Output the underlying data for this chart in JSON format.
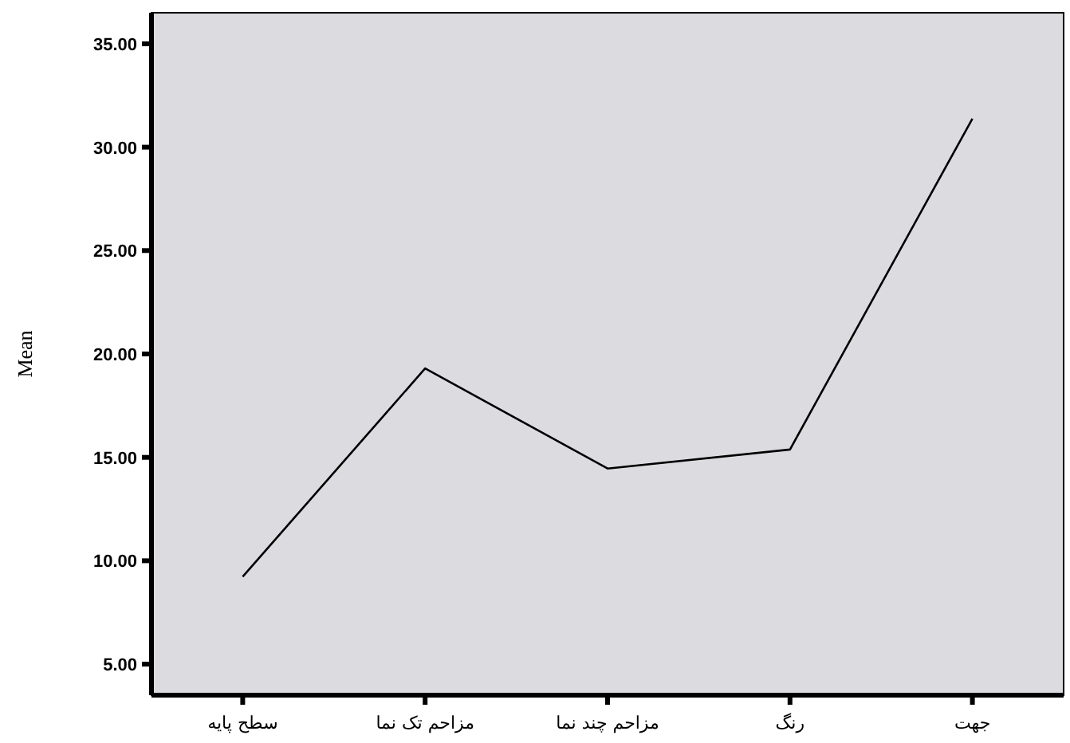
{
  "chart_data": {
    "type": "line",
    "ylabel": "Mean",
    "categories": [
      "سطح پایه",
      "مزاحم تک نما",
      "مزاحم چند نما",
      "رنگ",
      "جهت"
    ],
    "series": [
      {
        "color": "#000000",
        "values": [
          9.23,
          19.3,
          14.46,
          15.38,
          31.38
        ]
      }
    ],
    "ylim": [
      3.5,
      36.5
    ],
    "yticks": [
      {
        "value": 5,
        "label": "5.00"
      },
      {
        "value": 10,
        "label": "10.00"
      },
      {
        "value": 15,
        "label": "15.00"
      },
      {
        "value": 20,
        "label": "20.00"
      },
      {
        "value": 25,
        "label": "25.00"
      },
      {
        "value": 30,
        "label": "30.00"
      },
      {
        "value": 35,
        "label": "35.00"
      }
    ],
    "grid": false,
    "marker": "none",
    "line_style": "solid"
  }
}
